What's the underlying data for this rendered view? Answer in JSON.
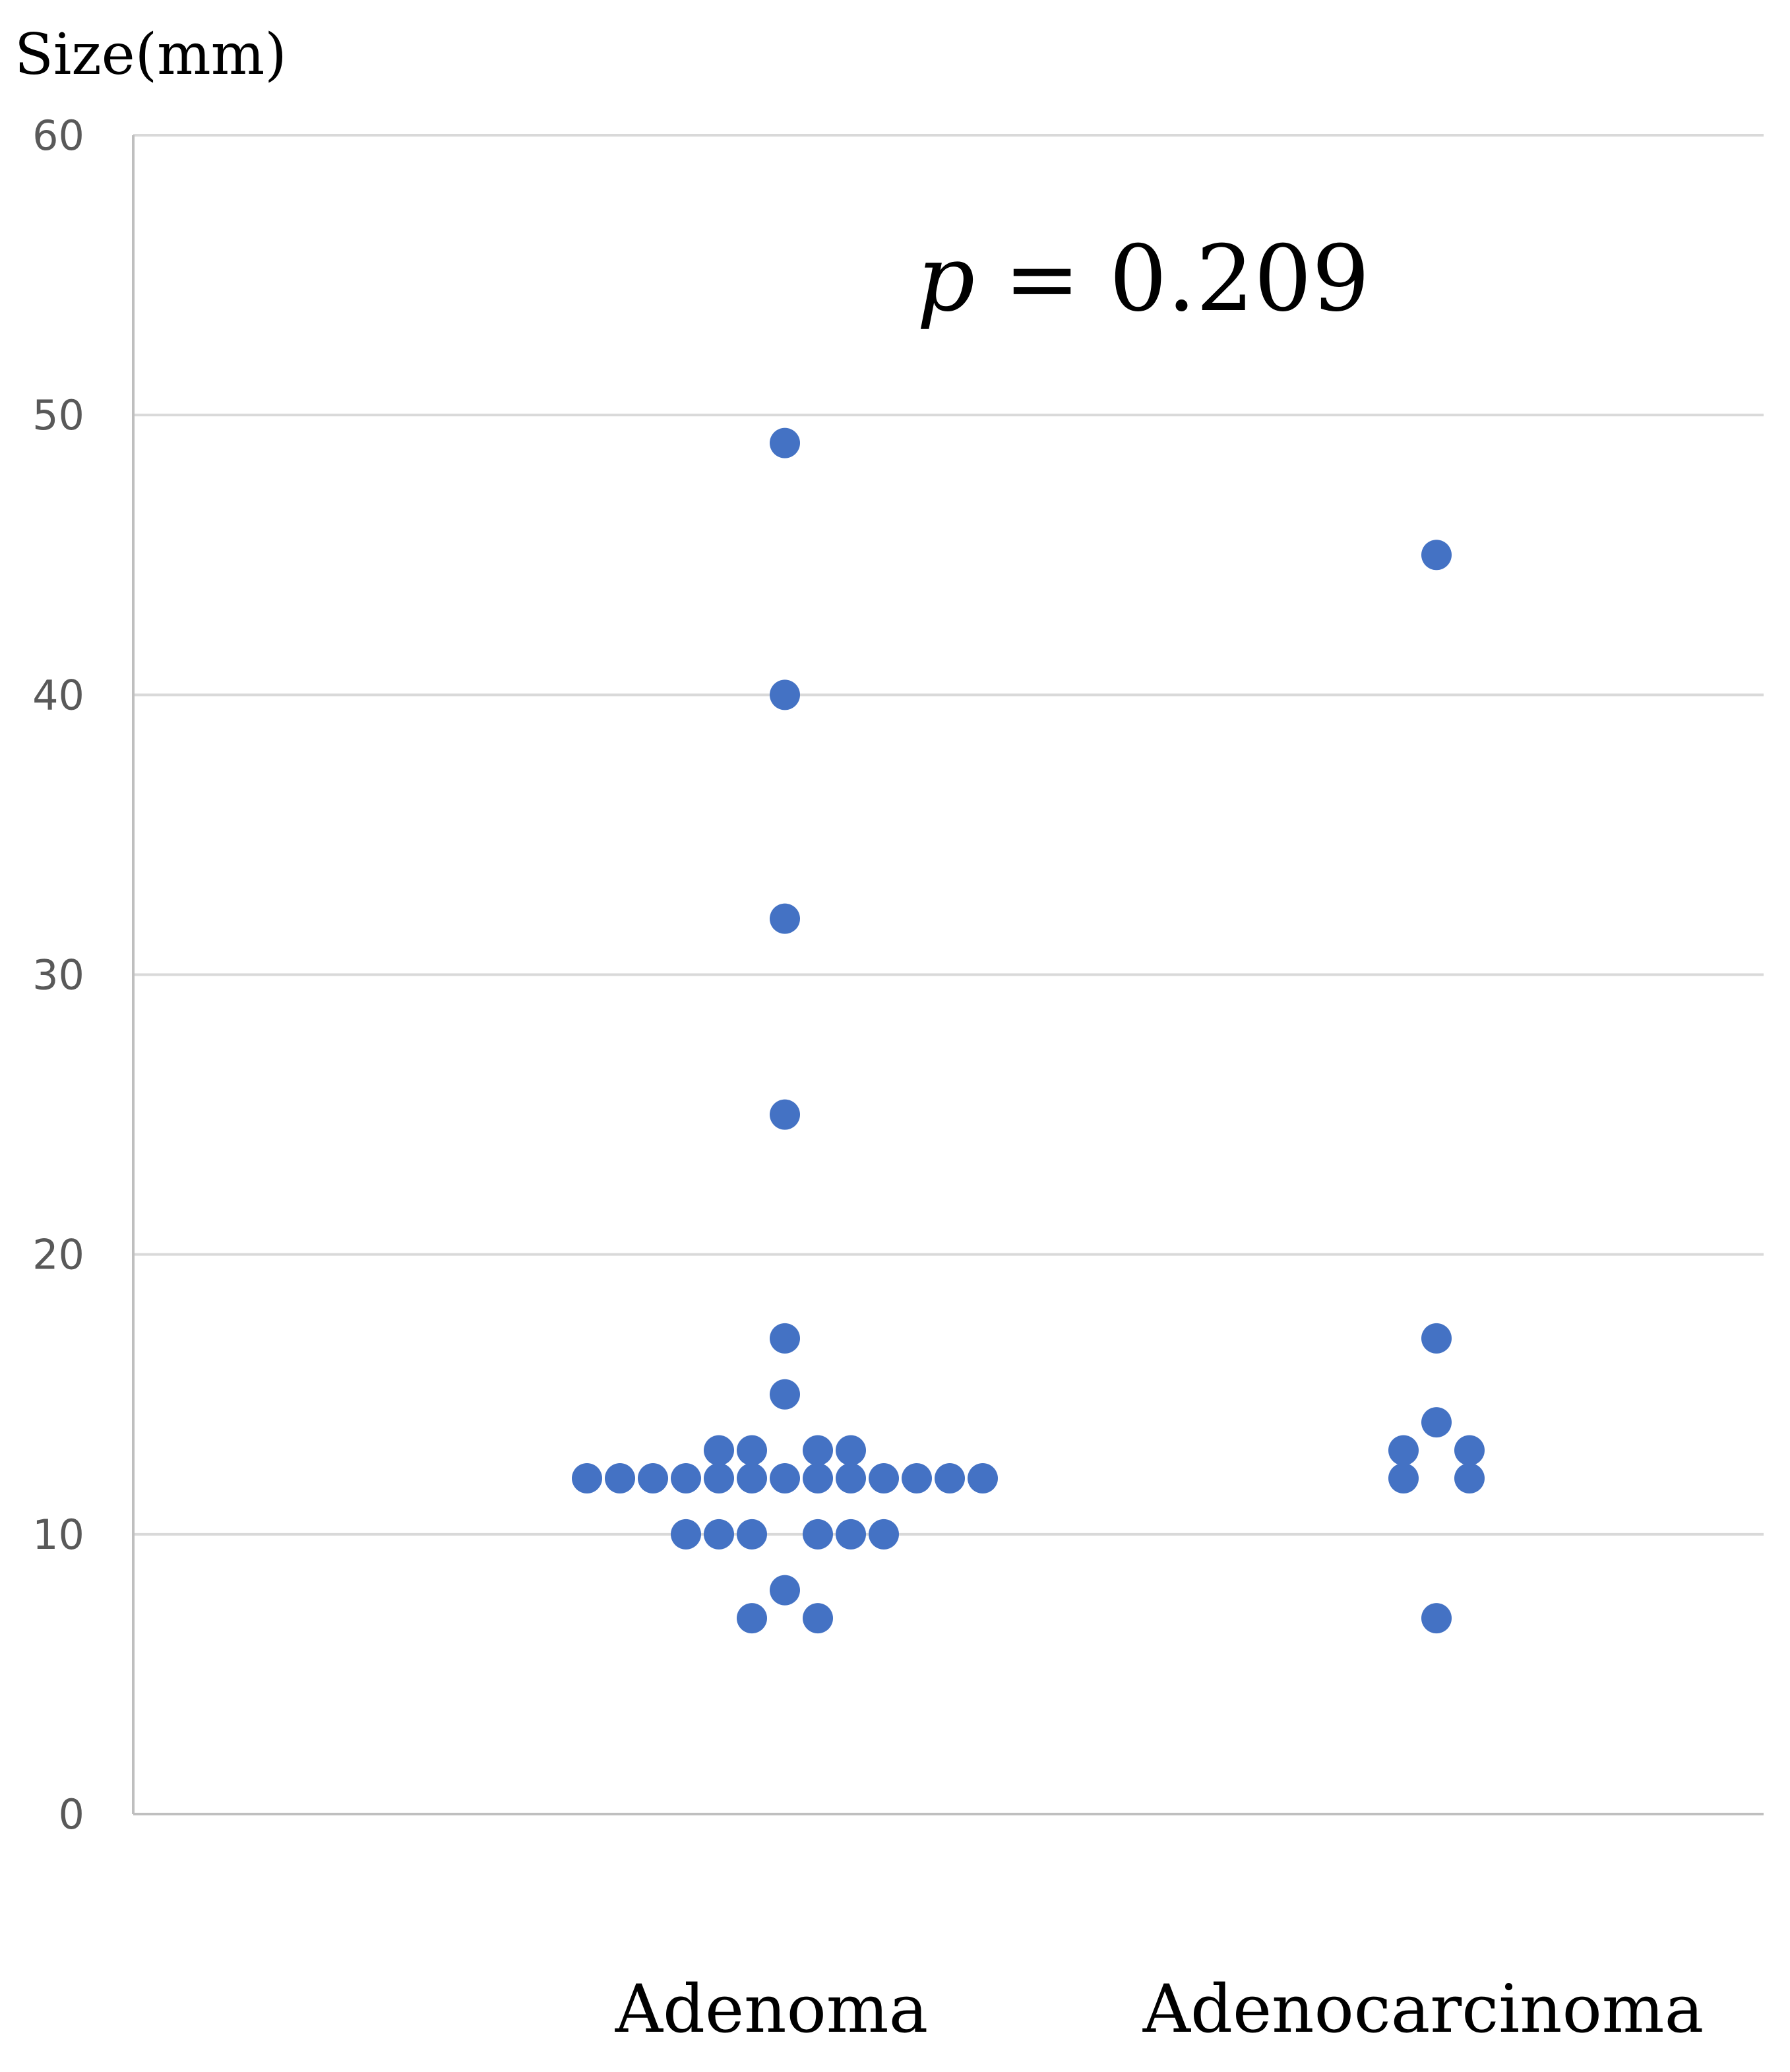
{
  "chart_data": {
    "type": "scatter",
    "ylabel": "Size(mm)",
    "ylim": [
      0,
      60
    ],
    "yticks": [
      0,
      10,
      20,
      30,
      40,
      50,
      60
    ],
    "grid": true,
    "categories": [
      "Adenoma",
      "Adenocarcinoma"
    ],
    "annotation": {
      "variable": "p",
      "text": " = 0.209"
    },
    "colors": {
      "marker": "#4472C4",
      "grid": "#D9D9D9",
      "tick_label": "#595959"
    },
    "series": [
      {
        "category": "Adenoma",
        "values": [
          49,
          40,
          32,
          25,
          17,
          15,
          13,
          13,
          13,
          13,
          12,
          12,
          12,
          12,
          12,
          12,
          12,
          12,
          12,
          12,
          12,
          12,
          12,
          10,
          10,
          10,
          10,
          10,
          10,
          8,
          7,
          7
        ]
      },
      {
        "category": "Adenocarcinoma",
        "values": [
          45,
          17,
          14,
          13,
          13,
          12,
          12,
          7
        ]
      }
    ]
  }
}
